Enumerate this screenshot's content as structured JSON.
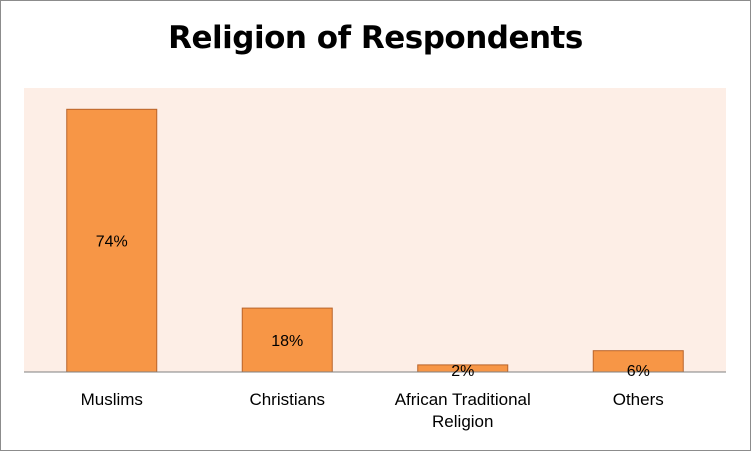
{
  "chart_data": {
    "type": "bar",
    "title": "Religion of Respondents",
    "categories": [
      [
        "Muslims"
      ],
      [
        "Christians"
      ],
      [
        "African Traditional",
        "Religion"
      ],
      [
        "Others"
      ]
    ],
    "values": [
      74,
      18,
      2,
      6
    ],
    "value_labels": [
      "74%",
      "18%",
      "2%",
      "6%"
    ],
    "xlabel": "",
    "ylabel": "",
    "ylim": [
      0,
      80
    ],
    "grid": false,
    "legend": "none",
    "colors": {
      "bar_fill": "#F79646",
      "bar_stroke": "#B8632A",
      "plot_background": "#FDEEE6",
      "axis": "#808080"
    }
  }
}
